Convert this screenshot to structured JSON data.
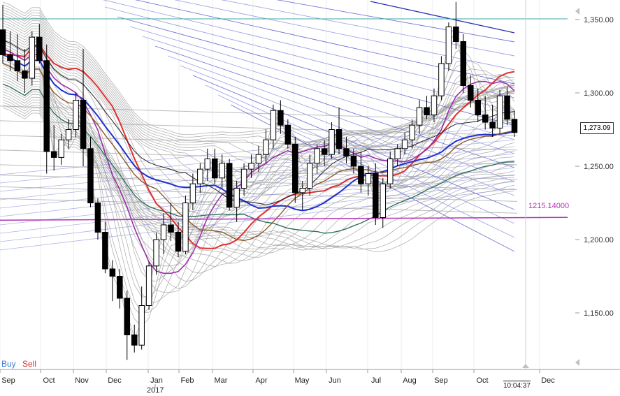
{
  "chart_data": {
    "type": "candlestick",
    "y_ticks": [
      "1,350.00",
      "1,300.00",
      "1,250.00",
      "1,200.00",
      "1,150.00"
    ],
    "y_tick_values": [
      1350,
      1300,
      1250,
      1200,
      1150
    ],
    "ylim": [
      1112,
      1368
    ],
    "x_month_labels": [
      "Sep",
      "Oct",
      "Nov",
      "Dec",
      "Jan",
      "Feb",
      "Mar",
      "Apr",
      "May",
      "Jun",
      "Jul",
      "Aug",
      "Sep",
      "Oct",
      "Dec"
    ],
    "year_label": "2017",
    "current_price": "1,273.09",
    "current_price_value": 1273.09,
    "level_label": "1215.14000",
    "level_value": 1215.14,
    "resistance_value": 1350.5,
    "time_label": "10:04:37",
    "candles": [
      [
        1343,
        1360,
        1320,
        1326
      ],
      [
        1326,
        1342,
        1315,
        1322
      ],
      [
        1322,
        1340,
        1308,
        1315
      ],
      [
        1315,
        1330,
        1300,
        1310
      ],
      [
        1310,
        1342,
        1305,
        1338
      ],
      [
        1338,
        1347,
        1320,
        1322
      ],
      [
        1322,
        1333,
        1245,
        1260
      ],
      [
        1260,
        1278,
        1247,
        1256
      ],
      [
        1256,
        1272,
        1251,
        1268
      ],
      [
        1268,
        1282,
        1262,
        1275
      ],
      [
        1275,
        1300,
        1270,
        1295
      ],
      [
        1295,
        1330,
        1250,
        1262
      ],
      [
        1262,
        1270,
        1222,
        1225
      ],
      [
        1225,
        1228,
        1200,
        1205
      ],
      [
        1205,
        1212,
        1177,
        1180
      ],
      [
        1180,
        1186,
        1158,
        1175
      ],
      [
        1175,
        1180,
        1153,
        1160
      ],
      [
        1160,
        1165,
        1118,
        1135
      ],
      [
        1135,
        1142,
        1123,
        1128
      ],
      [
        1128,
        1168,
        1125,
        1155
      ],
      [
        1155,
        1185,
        1152,
        1182
      ],
      [
        1182,
        1205,
        1176,
        1200
      ],
      [
        1200,
        1218,
        1190,
        1210
      ],
      [
        1210,
        1225,
        1199,
        1205
      ],
      [
        1205,
        1212,
        1188,
        1192
      ],
      [
        1192,
        1230,
        1190,
        1225
      ],
      [
        1225,
        1245,
        1220,
        1238
      ],
      [
        1238,
        1252,
        1232,
        1248
      ],
      [
        1248,
        1262,
        1240,
        1255
      ],
      [
        1255,
        1262,
        1238,
        1242
      ],
      [
        1242,
        1258,
        1235,
        1252
      ],
      [
        1252,
        1255,
        1220,
        1222
      ],
      [
        1222,
        1240,
        1212,
        1235
      ],
      [
        1235,
        1252,
        1230,
        1248
      ],
      [
        1248,
        1258,
        1242,
        1252
      ],
      [
        1252,
        1264,
        1246,
        1258
      ],
      [
        1258,
        1275,
        1252,
        1268
      ],
      [
        1268,
        1292,
        1262,
        1288
      ],
      [
        1288,
        1295,
        1272,
        1278
      ],
      [
        1278,
        1282,
        1262,
        1265
      ],
      [
        1265,
        1270,
        1225,
        1232
      ],
      [
        1232,
        1240,
        1220,
        1235
      ],
      [
        1235,
        1258,
        1230,
        1252
      ],
      [
        1252,
        1265,
        1245,
        1262
      ],
      [
        1262,
        1268,
        1250,
        1258
      ],
      [
        1258,
        1280,
        1255,
        1275
      ],
      [
        1275,
        1290,
        1258,
        1262
      ],
      [
        1262,
        1270,
        1252,
        1257
      ],
      [
        1257,
        1262,
        1245,
        1250
      ],
      [
        1250,
        1260,
        1232,
        1238
      ],
      [
        1238,
        1250,
        1230,
        1245
      ],
      [
        1245,
        1252,
        1210,
        1215
      ],
      [
        1215,
        1242,
        1208,
        1238
      ],
      [
        1238,
        1260,
        1235,
        1255
      ],
      [
        1255,
        1265,
        1250,
        1262
      ],
      [
        1262,
        1273,
        1258,
        1268
      ],
      [
        1268,
        1282,
        1262,
        1278
      ],
      [
        1278,
        1295,
        1272,
        1290
      ],
      [
        1290,
        1298,
        1282,
        1285
      ],
      [
        1285,
        1303,
        1280,
        1298
      ],
      [
        1298,
        1325,
        1295,
        1320
      ],
      [
        1320,
        1348,
        1315,
        1345
      ],
      [
        1345,
        1362,
        1330,
        1335
      ],
      [
        1335,
        1340,
        1300,
        1305
      ],
      [
        1305,
        1312,
        1290,
        1295
      ],
      [
        1295,
        1303,
        1280,
        1285
      ],
      [
        1285,
        1298,
        1275,
        1280
      ],
      [
        1280,
        1292,
        1270,
        1276
      ],
      [
        1276,
        1302,
        1272,
        1298
      ],
      [
        1298,
        1304,
        1278,
        1282
      ],
      [
        1282,
        1288,
        1270,
        1273
      ]
    ]
  }
}
